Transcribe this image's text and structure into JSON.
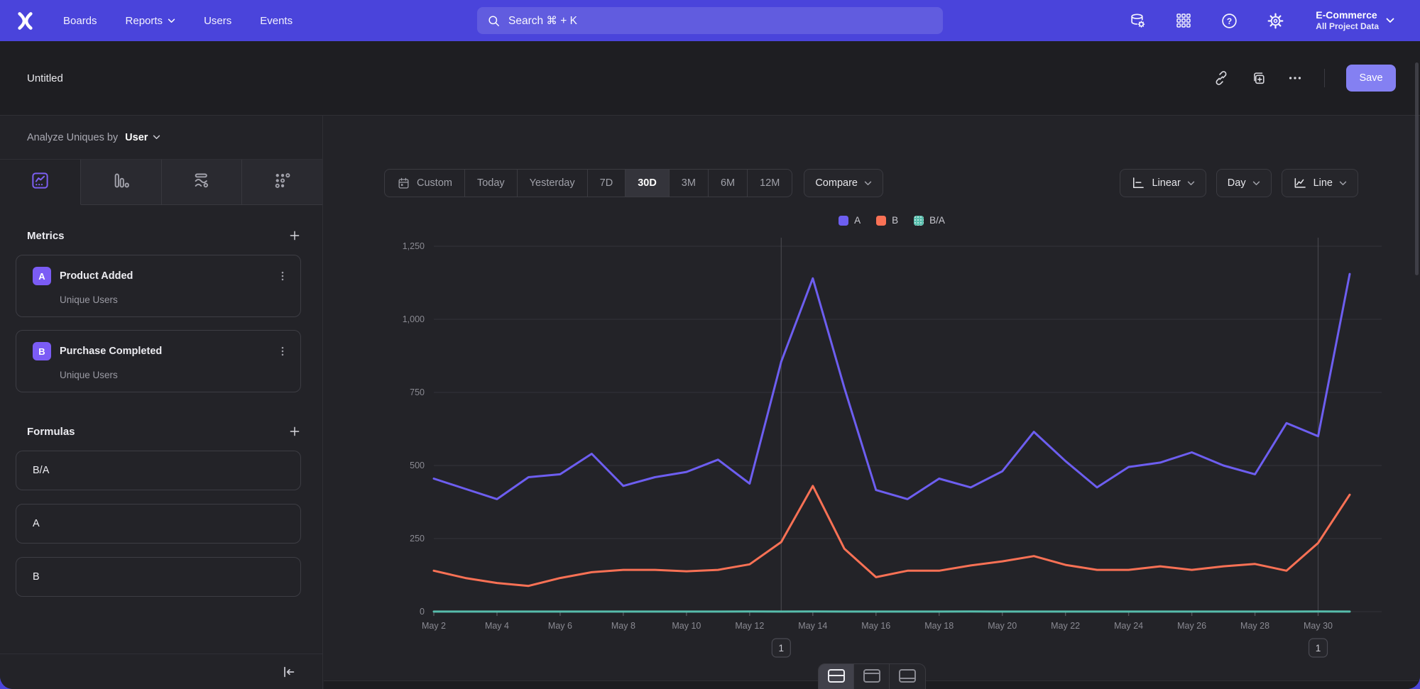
{
  "nav": {
    "menu": [
      {
        "label": "Boards",
        "chevron": false
      },
      {
        "label": "Reports",
        "chevron": true
      },
      {
        "label": "Users",
        "chevron": false
      },
      {
        "label": "Events",
        "chevron": false
      }
    ],
    "search_placeholder": "Search  ⌘ + K",
    "project_name": "E-Commerce",
    "project_scope": "All Project Data"
  },
  "header": {
    "title": "Untitled",
    "save_label": "Save"
  },
  "sidebar": {
    "analyze_prefix": "Analyze Uniques by",
    "analyze_value": "User",
    "metrics_title": "Metrics",
    "metrics": [
      {
        "letter": "A",
        "name": "Product Added",
        "sub": "Unique Users"
      },
      {
        "letter": "B",
        "name": "Purchase Completed",
        "sub": "Unique Users"
      }
    ],
    "formulas_title": "Formulas",
    "formulas": [
      "B/A",
      "A",
      "B"
    ]
  },
  "controls": {
    "date_ranges": [
      "Custom",
      "Today",
      "Yesterday",
      "7D",
      "30D",
      "3M",
      "6M",
      "12M"
    ],
    "selected_range": "30D",
    "compare_label": "Compare",
    "scale_label": "Linear",
    "interval_label": "Day",
    "chart_type_label": "Line"
  },
  "chart_data": {
    "type": "line",
    "x": [
      "May 2",
      "May 3",
      "May 4",
      "May 5",
      "May 6",
      "May 7",
      "May 8",
      "May 9",
      "May 10",
      "May 11",
      "May 12",
      "May 13",
      "May 14",
      "May 15",
      "May 16",
      "May 17",
      "May 18",
      "May 19",
      "May 20",
      "May 21",
      "May 22",
      "May 23",
      "May 24",
      "May 25",
      "May 26",
      "May 27",
      "May 28",
      "May 29",
      "May 30",
      "May 31"
    ],
    "x_label_every": 2,
    "ylim": [
      0,
      1250
    ],
    "yticks": [
      0,
      250,
      500,
      750,
      1000,
      1250
    ],
    "ytick_labels": [
      "0",
      "250",
      "500",
      "750",
      "1,000",
      "1,250"
    ],
    "grid": "horizontal",
    "legend_position": "top-center",
    "series": [
      {
        "name": "A",
        "color": "#6D5EF0",
        "pattern": false,
        "values": [
          455,
          420,
          385,
          460,
          470,
          540,
          430,
          460,
          478,
          520,
          438,
          855,
          1140,
          765,
          416,
          385,
          455,
          425,
          480,
          615,
          515,
          425,
          495,
          510,
          545,
          500,
          470,
          645,
          600,
          1155
        ]
      },
      {
        "name": "B",
        "color": "#F97155",
        "pattern": false,
        "values": [
          140,
          115,
          98,
          88,
          115,
          135,
          143,
          143,
          138,
          143,
          162,
          238,
          430,
          215,
          118,
          140,
          140,
          158,
          172,
          190,
          160,
          143,
          143,
          155,
          143,
          155,
          163,
          140,
          235,
          400
        ]
      },
      {
        "name": "B/A",
        "color": "#57BDAC",
        "pattern": true,
        "values": [
          0.31,
          0.27,
          0.25,
          0.19,
          0.24,
          0.25,
          0.33,
          0.31,
          0.29,
          0.28,
          0.37,
          0.28,
          0.38,
          0.28,
          0.28,
          0.36,
          0.31,
          0.37,
          0.36,
          0.31,
          0.31,
          0.34,
          0.29,
          0.3,
          0.26,
          0.31,
          0.35,
          0.22,
          0.39,
          0.35
        ]
      }
    ],
    "annotations": [
      {
        "x": "May 13",
        "x_index": 11,
        "label": "1"
      },
      {
        "x": "May 30",
        "x_index": 28,
        "label": "1"
      }
    ]
  }
}
